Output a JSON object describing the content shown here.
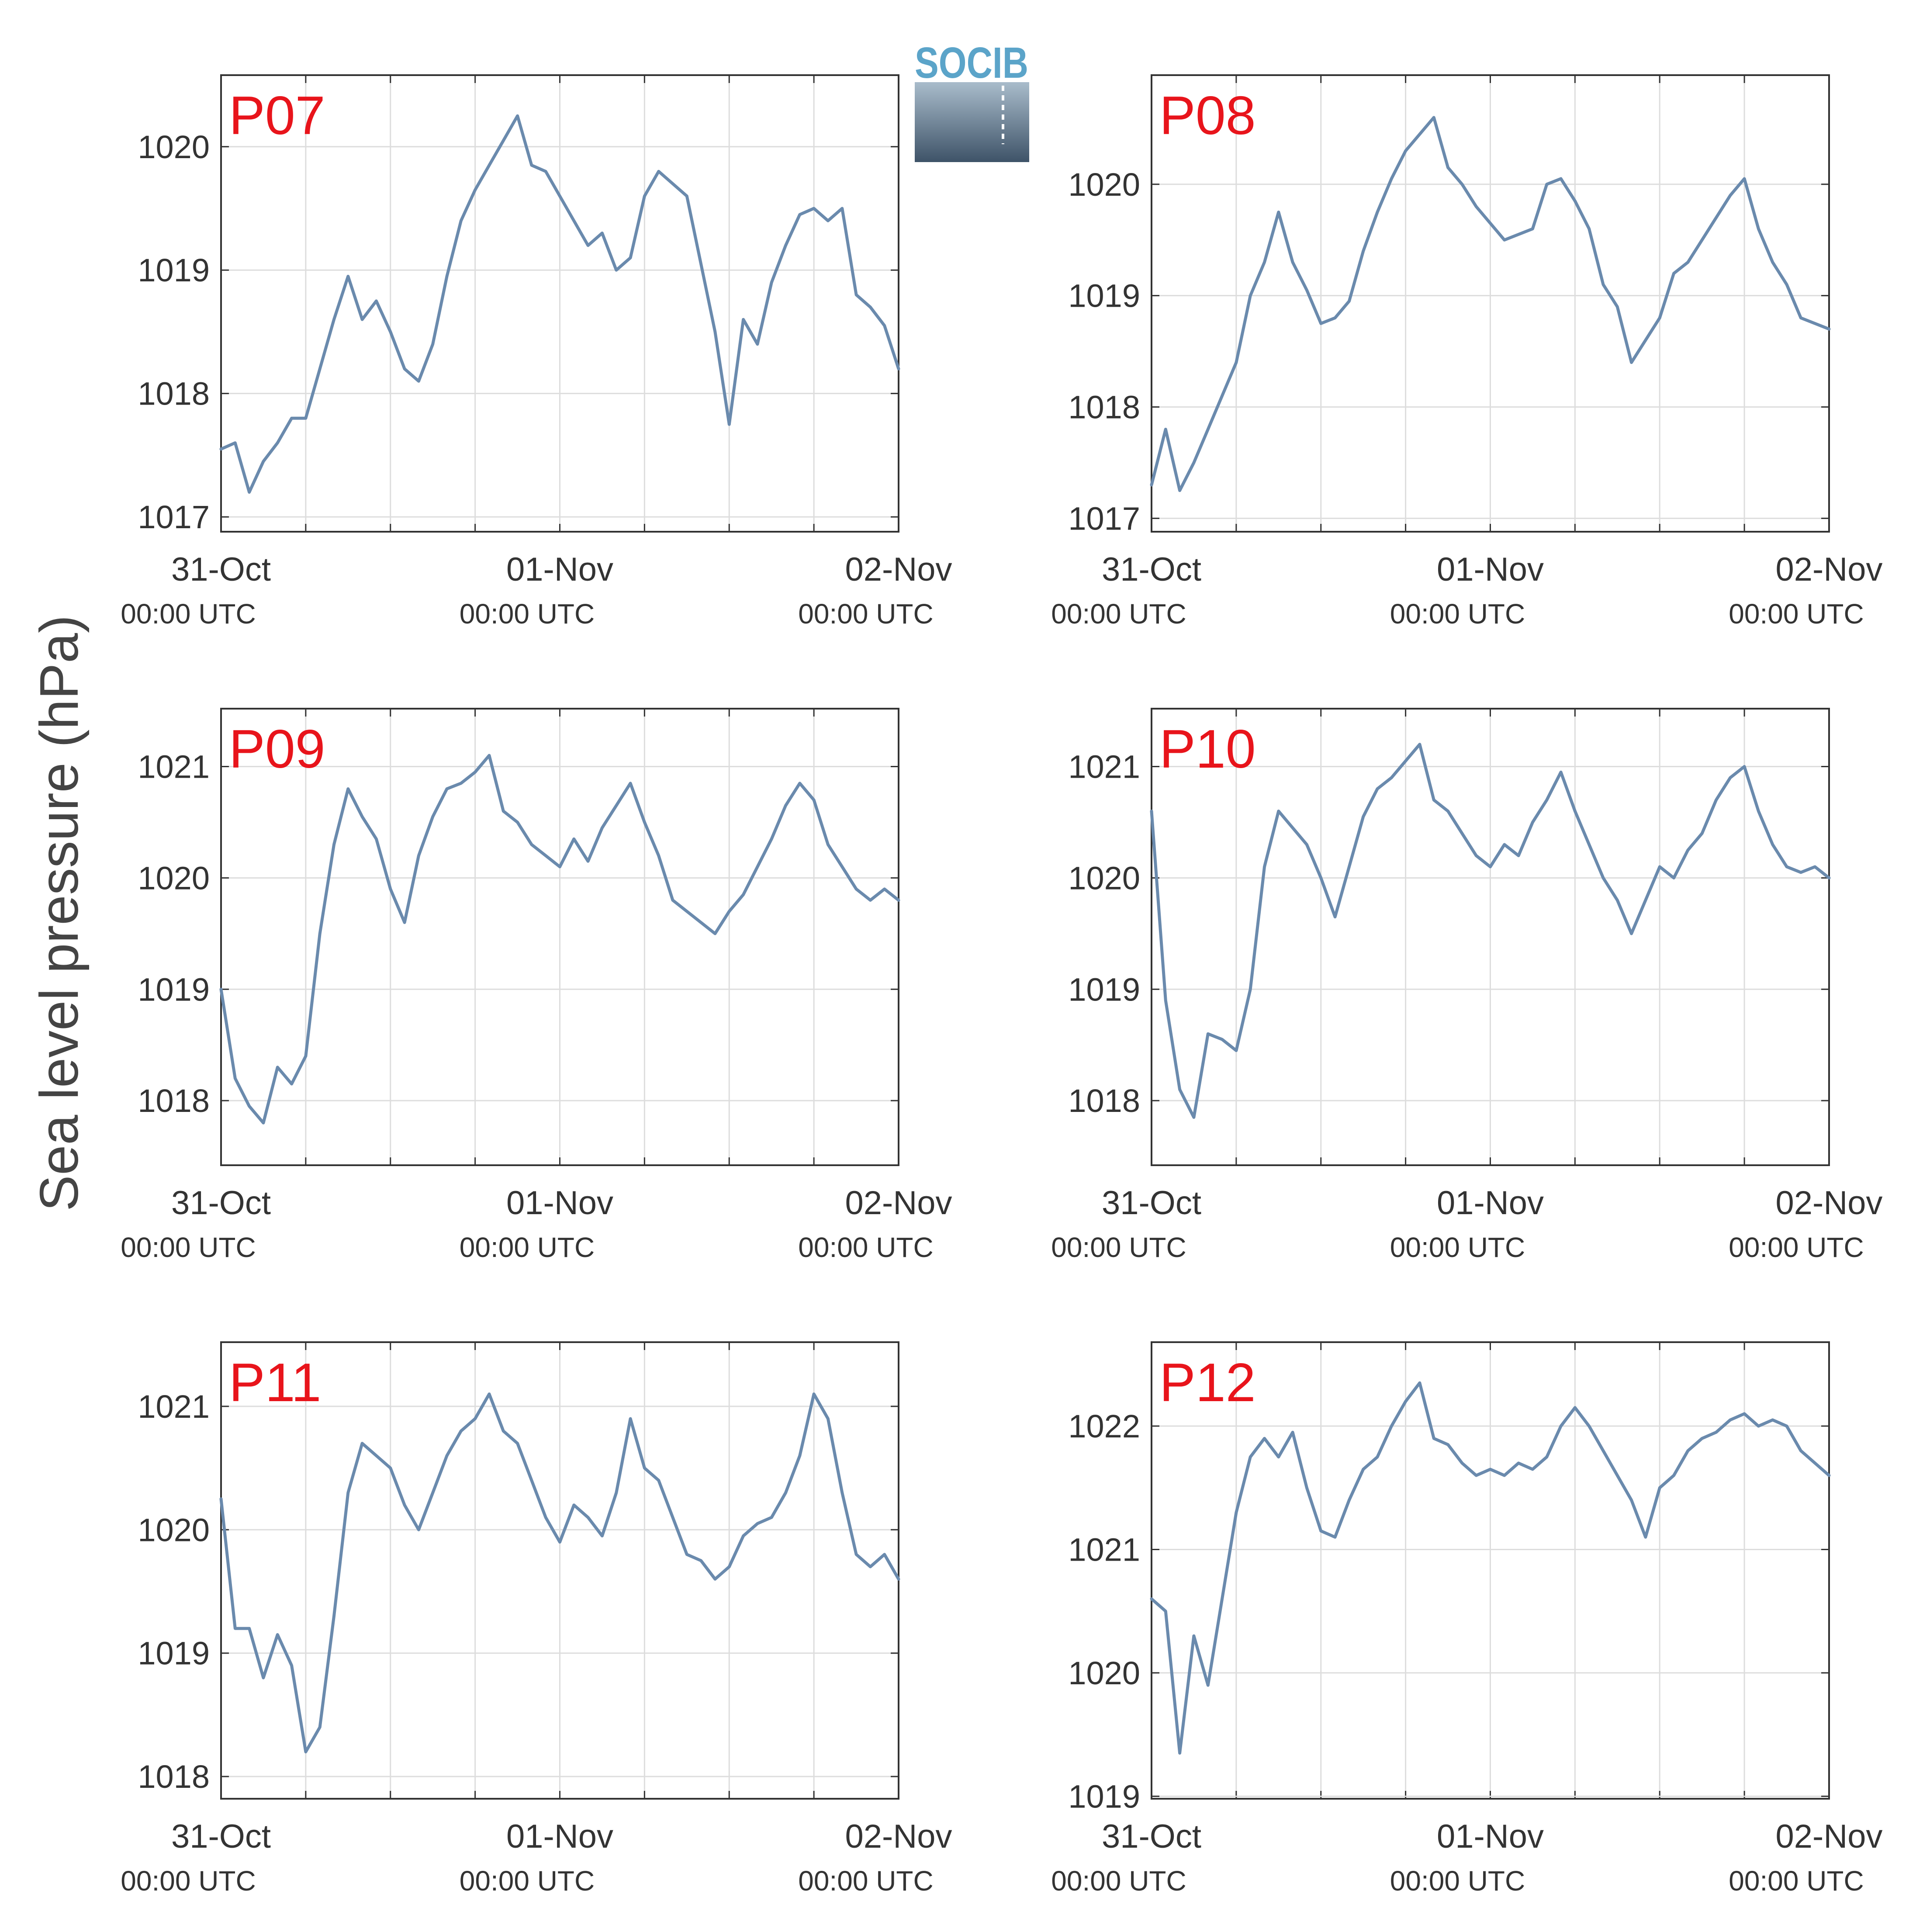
{
  "figure": {
    "ylabel": "Sea level pressure (hPa)",
    "logo_text": "SOCIB",
    "logo_colors": {
      "text": "#5ba4c9",
      "gradient_top": "#a9bccb",
      "gradient_bottom": "#3e5368"
    }
  },
  "style": {
    "line_color": "#6a8aad",
    "panel_label_color": "#e8141b",
    "grid_color": "#dddddd",
    "axis_color": "#333333"
  },
  "chart_data": [
    {
      "type": "line",
      "panel_label": "P07",
      "xlabel": "",
      "ylabel": "Sea level pressure (hPa)",
      "x_range_hours": [
        0,
        48
      ],
      "xticks": [
        {
          "hour": 0,
          "date": "31-Oct",
          "time": "00:00 UTC"
        },
        {
          "hour": 24,
          "date": "01-Nov",
          "time": "00:00 UTC"
        },
        {
          "hour": 48,
          "date": "02-Nov",
          "time": "00:00 UTC"
        }
      ],
      "ylim": [
        1016.88,
        1020.58
      ],
      "yticks": [
        1017,
        1018,
        1019,
        1020
      ],
      "grid": true,
      "series": [
        {
          "x": [
            0,
            1,
            2,
            3,
            4,
            5,
            6,
            7,
            8,
            9,
            10,
            11,
            12,
            13,
            14,
            15,
            16,
            17,
            18,
            19,
            20,
            21,
            22,
            23,
            24,
            25,
            26,
            27,
            28,
            29,
            30,
            31,
            32,
            33,
            34,
            35,
            36,
            37,
            38,
            39,
            40,
            41,
            42,
            43,
            44,
            45,
            46,
            47,
            48
          ],
          "y": [
            1017.55,
            1017.6,
            1017.2,
            1017.45,
            1017.6,
            1017.8,
            1017.8,
            1018.2,
            1018.6,
            1018.95,
            1018.6,
            1018.75,
            1018.5,
            1018.2,
            1018.1,
            1018.4,
            1018.95,
            1019.4,
            1019.65,
            1019.85,
            1020.05,
            1020.25,
            1019.85,
            1019.8,
            1019.6,
            1019.4,
            1019.2,
            1019.3,
            1019.0,
            1019.1,
            1019.6,
            1019.8,
            1019.7,
            1019.6,
            1019.05,
            1018.5,
            1017.75,
            1018.6,
            1018.4,
            1018.9,
            1019.2,
            1019.45,
            1019.5,
            1019.4,
            1019.5,
            1018.8,
            1018.7,
            1018.55,
            1018.2
          ]
        }
      ]
    },
    {
      "type": "line",
      "panel_label": "P08",
      "xlabel": "",
      "ylabel": "Sea level pressure (hPa)",
      "x_range_hours": [
        0,
        48
      ],
      "xticks": [
        {
          "hour": 0,
          "date": "31-Oct",
          "time": "00:00 UTC"
        },
        {
          "hour": 24,
          "date": "01-Nov",
          "time": "00:00 UTC"
        },
        {
          "hour": 48,
          "date": "02-Nov",
          "time": "00:00 UTC"
        }
      ],
      "ylim": [
        1016.88,
        1020.98
      ],
      "yticks": [
        1017,
        1018,
        1019,
        1020
      ],
      "grid": true,
      "series": [
        {
          "x": [
            0,
            1,
            2,
            3,
            4,
            5,
            6,
            7,
            8,
            9,
            10,
            11,
            12,
            13,
            14,
            15,
            16,
            17,
            18,
            19,
            20,
            21,
            22,
            23,
            24,
            25,
            26,
            27,
            28,
            29,
            30,
            31,
            32,
            33,
            34,
            35,
            36,
            37,
            38,
            39,
            40,
            41,
            42,
            43,
            44,
            45,
            46,
            47,
            48
          ],
          "y": [
            1017.3,
            1017.8,
            1017.25,
            1017.5,
            1017.8,
            1018.1,
            1018.4,
            1019.0,
            1019.3,
            1019.75,
            1019.3,
            1019.05,
            1018.75,
            1018.8,
            1018.95,
            1019.4,
            1019.75,
            1020.05,
            1020.3,
            1020.45,
            1020.6,
            1020.15,
            1020.0,
            1019.8,
            1019.65,
            1019.5,
            1019.55,
            1019.6,
            1020.0,
            1020.05,
            1019.85,
            1019.6,
            1019.1,
            1018.9,
            1018.4,
            1018.6,
            1018.8,
            1019.2,
            1019.3,
            1019.5,
            1019.7,
            1019.9,
            1020.05,
            1019.6,
            1019.3,
            1019.1,
            1018.8,
            1018.75,
            1018.7
          ]
        }
      ]
    },
    {
      "type": "line",
      "panel_label": "P09",
      "xlabel": "",
      "ylabel": "Sea level pressure (hPa)",
      "x_range_hours": [
        0,
        48
      ],
      "xticks": [
        {
          "hour": 0,
          "date": "31-Oct",
          "time": "00:00 UTC"
        },
        {
          "hour": 24,
          "date": "01-Nov",
          "time": "00:00 UTC"
        },
        {
          "hour": 48,
          "date": "02-Nov",
          "time": "00:00 UTC"
        }
      ],
      "ylim": [
        1017.42,
        1021.52
      ],
      "yticks": [
        1018,
        1019,
        1020,
        1021
      ],
      "grid": true,
      "series": [
        {
          "x": [
            0,
            1,
            2,
            3,
            4,
            5,
            6,
            7,
            8,
            9,
            10,
            11,
            12,
            13,
            14,
            15,
            16,
            17,
            18,
            19,
            20,
            21,
            22,
            23,
            24,
            25,
            26,
            27,
            28,
            29,
            30,
            31,
            32,
            33,
            34,
            35,
            36,
            37,
            38,
            39,
            40,
            41,
            42,
            43,
            44,
            45,
            46,
            47,
            48
          ],
          "y": [
            1019.0,
            1018.2,
            1017.95,
            1017.8,
            1018.3,
            1018.15,
            1018.4,
            1019.5,
            1020.3,
            1020.8,
            1020.55,
            1020.35,
            1019.9,
            1019.6,
            1020.2,
            1020.55,
            1020.8,
            1020.85,
            1020.95,
            1021.1,
            1020.6,
            1020.5,
            1020.3,
            1020.2,
            1020.1,
            1020.35,
            1020.15,
            1020.45,
            1020.65,
            1020.85,
            1020.5,
            1020.2,
            1019.8,
            1019.7,
            1019.6,
            1019.5,
            1019.7,
            1019.85,
            1020.1,
            1020.35,
            1020.65,
            1020.85,
            1020.7,
            1020.3,
            1020.1,
            1019.9,
            1019.8,
            1019.9,
            1019.8
          ]
        }
      ]
    },
    {
      "type": "line",
      "panel_label": "P10",
      "xlabel": "",
      "ylabel": "Sea level pressure (hPa)",
      "x_range_hours": [
        0,
        48
      ],
      "xticks": [
        {
          "hour": 0,
          "date": "31-Oct",
          "time": "00:00 UTC"
        },
        {
          "hour": 24,
          "date": "01-Nov",
          "time": "00:00 UTC"
        },
        {
          "hour": 48,
          "date": "02-Nov",
          "time": "00:00 UTC"
        }
      ],
      "ylim": [
        1017.42,
        1021.52
      ],
      "yticks": [
        1018,
        1019,
        1020,
        1021
      ],
      "grid": true,
      "series": [
        {
          "x": [
            0,
            1,
            2,
            3,
            4,
            5,
            6,
            7,
            8,
            9,
            10,
            11,
            12,
            13,
            14,
            15,
            16,
            17,
            18,
            19,
            20,
            21,
            22,
            23,
            24,
            25,
            26,
            27,
            28,
            29,
            30,
            31,
            32,
            33,
            34,
            35,
            36,
            37,
            38,
            39,
            40,
            41,
            42,
            43,
            44,
            45,
            46,
            47,
            48
          ],
          "y": [
            1020.6,
            1018.9,
            1018.1,
            1017.85,
            1018.6,
            1018.55,
            1018.45,
            1019.0,
            1020.1,
            1020.6,
            1020.45,
            1020.3,
            1020.0,
            1019.65,
            1020.1,
            1020.55,
            1020.8,
            1020.9,
            1021.05,
            1021.2,
            1020.7,
            1020.6,
            1020.4,
            1020.2,
            1020.1,
            1020.3,
            1020.2,
            1020.5,
            1020.7,
            1020.95,
            1020.6,
            1020.3,
            1020.0,
            1019.8,
            1019.5,
            1019.8,
            1020.1,
            1020.0,
            1020.25,
            1020.4,
            1020.7,
            1020.9,
            1021.0,
            1020.6,
            1020.3,
            1020.1,
            1020.05,
            1020.1,
            1020.0
          ]
        }
      ]
    },
    {
      "type": "line",
      "panel_label": "P11",
      "xlabel": "",
      "ylabel": "Sea level pressure (hPa)",
      "x_range_hours": [
        0,
        48
      ],
      "xticks": [
        {
          "hour": 0,
          "date": "31-Oct",
          "time": "00:00 UTC"
        },
        {
          "hour": 24,
          "date": "01-Nov",
          "time": "00:00 UTC"
        },
        {
          "hour": 48,
          "date": "02-Nov",
          "time": "00:00 UTC"
        }
      ],
      "ylim": [
        1017.82,
        1021.52
      ],
      "yticks": [
        1018,
        1019,
        1020,
        1021
      ],
      "grid": true,
      "series": [
        {
          "x": [
            0,
            1,
            2,
            3,
            4,
            5,
            6,
            7,
            8,
            9,
            10,
            11,
            12,
            13,
            14,
            15,
            16,
            17,
            18,
            19,
            20,
            21,
            22,
            23,
            24,
            25,
            26,
            27,
            28,
            29,
            30,
            31,
            32,
            33,
            34,
            35,
            36,
            37,
            38,
            39,
            40,
            41,
            42,
            43,
            44,
            45,
            46,
            47,
            48
          ],
          "y": [
            1020.25,
            1019.2,
            1019.2,
            1018.8,
            1019.15,
            1018.9,
            1018.2,
            1018.4,
            1019.3,
            1020.3,
            1020.7,
            1020.6,
            1020.5,
            1020.2,
            1020.0,
            1020.3,
            1020.6,
            1020.8,
            1020.9,
            1021.1,
            1020.8,
            1020.7,
            1020.4,
            1020.1,
            1019.9,
            1020.2,
            1020.1,
            1019.95,
            1020.3,
            1020.9,
            1020.5,
            1020.4,
            1020.1,
            1019.8,
            1019.75,
            1019.6,
            1019.7,
            1019.95,
            1020.05,
            1020.1,
            1020.3,
            1020.6,
            1021.1,
            1020.9,
            1020.3,
            1019.8,
            1019.7,
            1019.8,
            1019.6
          ]
        }
      ]
    },
    {
      "type": "line",
      "panel_label": "P12",
      "xlabel": "",
      "ylabel": "Sea level pressure (hPa)",
      "x_range_hours": [
        0,
        48
      ],
      "xticks": [
        {
          "hour": 0,
          "date": "31-Oct",
          "time": "00:00 UTC"
        },
        {
          "hour": 24,
          "date": "01-Nov",
          "time": "00:00 UTC"
        },
        {
          "hour": 48,
          "date": "02-Nov",
          "time": "00:00 UTC"
        }
      ],
      "ylim": [
        1018.98,
        1022.68
      ],
      "yticks": [
        1019,
        1020,
        1021,
        1022
      ],
      "grid": true,
      "series": [
        {
          "x": [
            0,
            1,
            2,
            3,
            4,
            5,
            6,
            7,
            8,
            9,
            10,
            11,
            12,
            13,
            14,
            15,
            16,
            17,
            18,
            19,
            20,
            21,
            22,
            23,
            24,
            25,
            26,
            27,
            28,
            29,
            30,
            31,
            32,
            33,
            34,
            35,
            36,
            37,
            38,
            39,
            40,
            41,
            42,
            43,
            44,
            45,
            46,
            47,
            48
          ],
          "y": [
            1020.6,
            1020.5,
            1019.35,
            1020.3,
            1019.9,
            1020.6,
            1021.3,
            1021.75,
            1021.9,
            1021.75,
            1021.95,
            1021.5,
            1021.15,
            1021.1,
            1021.4,
            1021.65,
            1021.75,
            1022.0,
            1022.2,
            1022.35,
            1021.9,
            1021.85,
            1021.7,
            1021.6,
            1021.65,
            1021.6,
            1021.7,
            1021.65,
            1021.75,
            1022.0,
            1022.15,
            1022.0,
            1021.8,
            1021.6,
            1021.4,
            1021.1,
            1021.5,
            1021.6,
            1021.8,
            1021.9,
            1021.95,
            1022.05,
            1022.1,
            1022.0,
            1022.05,
            1022.0,
            1021.8,
            1021.7,
            1021.6
          ]
        }
      ]
    }
  ]
}
